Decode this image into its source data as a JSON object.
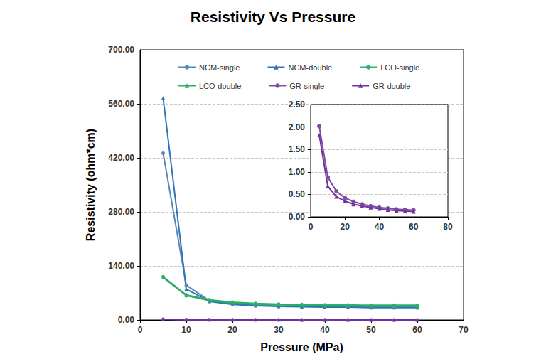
{
  "chart_data": [
    {
      "type": "line",
      "title": "Resistivity Vs Pressure",
      "x_label": "Pressure (MPa)",
      "y_label": "Resistivity (ohm*cm)",
      "x": [
        5,
        10,
        15,
        20,
        25,
        30,
        35,
        40,
        45,
        50,
        55,
        60
      ],
      "series": [
        {
          "name": "NCM-single",
          "color": "#5b86b8",
          "marker": "circle",
          "values": [
            432,
            90,
            50,
            42,
            38,
            36,
            35,
            34,
            34,
            33,
            33,
            33
          ]
        },
        {
          "name": "NCM-double",
          "color": "#2e75b6",
          "marker": "triangle",
          "values": [
            575,
            80,
            48,
            40,
            37,
            35,
            34,
            33,
            33,
            32,
            32,
            32
          ]
        },
        {
          "name": "LCO-single",
          "color": "#2fb36a",
          "marker": "circle",
          "values": [
            112,
            65,
            52,
            46,
            43,
            41,
            40,
            39,
            39,
            38,
            38,
            38
          ]
        },
        {
          "name": "LCO-double",
          "color": "#27ae60",
          "marker": "triangle",
          "values": [
            110,
            63,
            50,
            44,
            41,
            39,
            38,
            37,
            37,
            36,
            36,
            36
          ]
        },
        {
          "name": "GR-single",
          "color": "#7b4f9e",
          "marker": "circle",
          "values": [
            2.02,
            0.88,
            0.57,
            0.42,
            0.34,
            0.28,
            0.24,
            0.21,
            0.19,
            0.17,
            0.16,
            0.15
          ]
        },
        {
          "name": "GR-double",
          "color": "#7030a0",
          "marker": "triangle",
          "values": [
            1.82,
            0.68,
            0.45,
            0.35,
            0.28,
            0.24,
            0.21,
            0.18,
            0.16,
            0.14,
            0.13,
            0.12
          ]
        }
      ],
      "xlim": [
        0,
        70
      ],
      "xticks": [
        0,
        10,
        20,
        30,
        40,
        50,
        60,
        70
      ],
      "ylim": [
        0,
        700
      ],
      "yticks": [
        {
          "value": 0,
          "label": "0.00"
        },
        {
          "value": 140,
          "label": "140.00"
        },
        {
          "value": 280,
          "label": "280.00"
        },
        {
          "value": 420,
          "label": "420.00"
        },
        {
          "value": 560,
          "label": "560.00"
        },
        {
          "value": 700,
          "label": "700.00"
        }
      ],
      "grid": true,
      "legend": "top"
    },
    {
      "type": "line",
      "x": [
        5,
        10,
        15,
        20,
        25,
        30,
        35,
        40,
        45,
        50,
        55,
        60
      ],
      "series": [
        {
          "color": "#7b4f9e",
          "marker": "circle",
          "values": [
            2.02,
            0.88,
            0.57,
            0.42,
            0.34,
            0.28,
            0.24,
            0.21,
            0.19,
            0.17,
            0.16,
            0.15
          ]
        },
        {
          "color": "#7030a0",
          "marker": "triangle",
          "values": [
            1.82,
            0.68,
            0.45,
            0.35,
            0.28,
            0.24,
            0.21,
            0.18,
            0.16,
            0.14,
            0.13,
            0.12
          ]
        }
      ],
      "xlim": [
        0,
        80
      ],
      "xticks": [
        0,
        20,
        40,
        60,
        80
      ],
      "ylim": [
        0,
        2.5
      ],
      "yticks": [
        {
          "value": 0,
          "label": "0.00"
        },
        {
          "value": 0.5,
          "label": "0.50"
        },
        {
          "value": 1,
          "label": "1.00"
        },
        {
          "value": 1.5,
          "label": "1.50"
        },
        {
          "value": 2,
          "label": "2.00"
        },
        {
          "value": 2.5,
          "label": "2.50"
        }
      ],
      "grid": true
    }
  ]
}
